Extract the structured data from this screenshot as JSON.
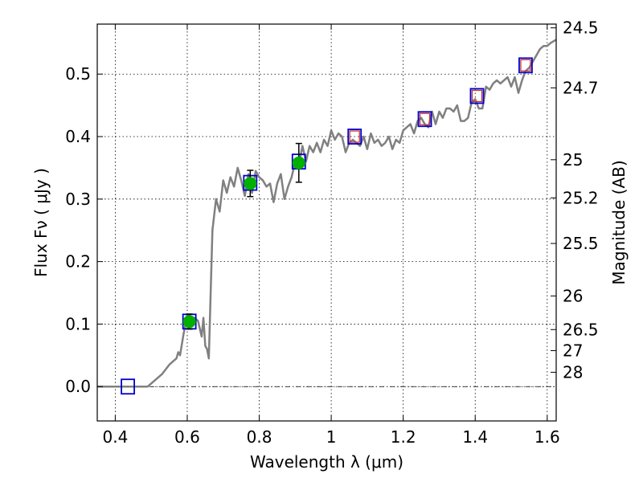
{
  "chart_data": {
    "type": "line",
    "xlabel": "Wavelength  λ (μm)",
    "ylabel": "Flux  Fν  ( μJy )",
    "y2label": "Magnitude (AB)",
    "xlim": [
      0.35,
      1.625
    ],
    "ylim": [
      -0.055,
      0.58
    ],
    "grid": true,
    "x_ticks": [
      0.4,
      0.6,
      0.8,
      1.0,
      1.2,
      1.4,
      1.6
    ],
    "x_tick_labels": [
      "0.4",
      "0.6",
      "0.8",
      "1",
      "1.2",
      "1.4",
      "1.6"
    ],
    "y_ticks": [
      0.0,
      0.1,
      0.2,
      0.3,
      0.4,
      0.5
    ],
    "y_tick_labels": [
      "0.0",
      "0.1",
      "0.2",
      "0.3",
      "0.4",
      "0.5"
    ],
    "y2_ticks": [
      {
        "label": "24.5",
        "flux": 0.574
      },
      {
        "label": "24.7",
        "flux": 0.478
      },
      {
        "label": "25",
        "flux": 0.363
      },
      {
        "label": "25.2",
        "flux": 0.302
      },
      {
        "label": "25.5",
        "flux": 0.229
      },
      {
        "label": "26",
        "flux": 0.145
      },
      {
        "label": "26.5",
        "flux": 0.0912
      },
      {
        "label": "27",
        "flux": 0.0575
      },
      {
        "label": "28",
        "flux": 0.0229
      }
    ],
    "series": [
      {
        "style": "sed-model-line",
        "color": "#808080",
        "x": [
          0.35,
          0.49,
          0.51,
          0.53,
          0.55,
          0.56,
          0.57,
          0.575,
          0.58,
          0.59,
          0.6,
          0.61,
          0.62,
          0.63,
          0.64,
          0.645,
          0.65,
          0.655,
          0.66,
          0.665,
          0.67,
          0.68,
          0.69,
          0.7,
          0.71,
          0.72,
          0.73,
          0.74,
          0.75,
          0.76,
          0.77,
          0.78,
          0.79,
          0.8,
          0.81,
          0.82,
          0.83,
          0.84,
          0.85,
          0.86,
          0.87,
          0.88,
          0.89,
          0.9,
          0.91,
          0.92,
          0.93,
          0.94,
          0.95,
          0.96,
          0.97,
          0.98,
          0.99,
          1.0,
          1.01,
          1.02,
          1.03,
          1.04,
          1.05,
          1.06,
          1.07,
          1.08,
          1.09,
          1.1,
          1.11,
          1.12,
          1.13,
          1.14,
          1.15,
          1.16,
          1.17,
          1.18,
          1.19,
          1.2,
          1.21,
          1.22,
          1.23,
          1.24,
          1.25,
          1.26,
          1.27,
          1.28,
          1.29,
          1.3,
          1.31,
          1.32,
          1.33,
          1.34,
          1.35,
          1.36,
          1.37,
          1.38,
          1.39,
          1.4,
          1.41,
          1.42,
          1.43,
          1.44,
          1.45,
          1.46,
          1.47,
          1.48,
          1.49,
          1.5,
          1.51,
          1.52,
          1.53,
          1.54,
          1.55,
          1.56,
          1.57,
          1.58,
          1.59,
          1.6,
          1.61,
          1.625
        ],
        "y": [
          0.0,
          0.0,
          0.01,
          0.02,
          0.035,
          0.04,
          0.045,
          0.055,
          0.05,
          0.085,
          0.115,
          0.1,
          0.11,
          0.105,
          0.08,
          0.11,
          0.065,
          0.06,
          0.045,
          0.15,
          0.25,
          0.3,
          0.28,
          0.33,
          0.31,
          0.335,
          0.32,
          0.35,
          0.33,
          0.305,
          0.34,
          0.31,
          0.345,
          0.335,
          0.33,
          0.32,
          0.325,
          0.295,
          0.325,
          0.34,
          0.3,
          0.32,
          0.335,
          0.36,
          0.355,
          0.385,
          0.36,
          0.385,
          0.375,
          0.39,
          0.375,
          0.395,
          0.385,
          0.41,
          0.395,
          0.405,
          0.4,
          0.375,
          0.39,
          0.395,
          0.39,
          0.385,
          0.4,
          0.38,
          0.405,
          0.39,
          0.395,
          0.385,
          0.39,
          0.4,
          0.38,
          0.395,
          0.39,
          0.41,
          0.415,
          0.42,
          0.405,
          0.425,
          0.43,
          0.42,
          0.415,
          0.44,
          0.42,
          0.44,
          0.43,
          0.445,
          0.445,
          0.44,
          0.45,
          0.425,
          0.425,
          0.43,
          0.455,
          0.46,
          0.445,
          0.445,
          0.48,
          0.475,
          0.485,
          0.49,
          0.485,
          0.49,
          0.495,
          0.48,
          0.495,
          0.47,
          0.49,
          0.505,
          0.51,
          0.52,
          0.53,
          0.54,
          0.545,
          0.545,
          0.55,
          0.555
        ]
      },
      {
        "style": "blue-squares",
        "color": "#0000cc",
        "x": [
          0.435,
          0.606,
          0.775,
          0.91,
          1.065,
          1.26,
          1.405,
          1.54
        ],
        "y": [
          0.0,
          0.104,
          0.326,
          0.36,
          0.4,
          0.428,
          0.465,
          0.514
        ]
      },
      {
        "style": "red-squares",
        "color": "#cc3333",
        "x": [
          1.065,
          1.26,
          1.405,
          1.54
        ],
        "y": [
          0.4,
          0.428,
          0.465,
          0.514
        ]
      },
      {
        "style": "green-circles",
        "color": "#00b000",
        "x": [
          0.606,
          0.775,
          0.91
        ],
        "y": [
          0.104,
          0.325,
          0.358
        ],
        "yerr": [
          0.012,
          0.021,
          0.031
        ]
      }
    ]
  }
}
